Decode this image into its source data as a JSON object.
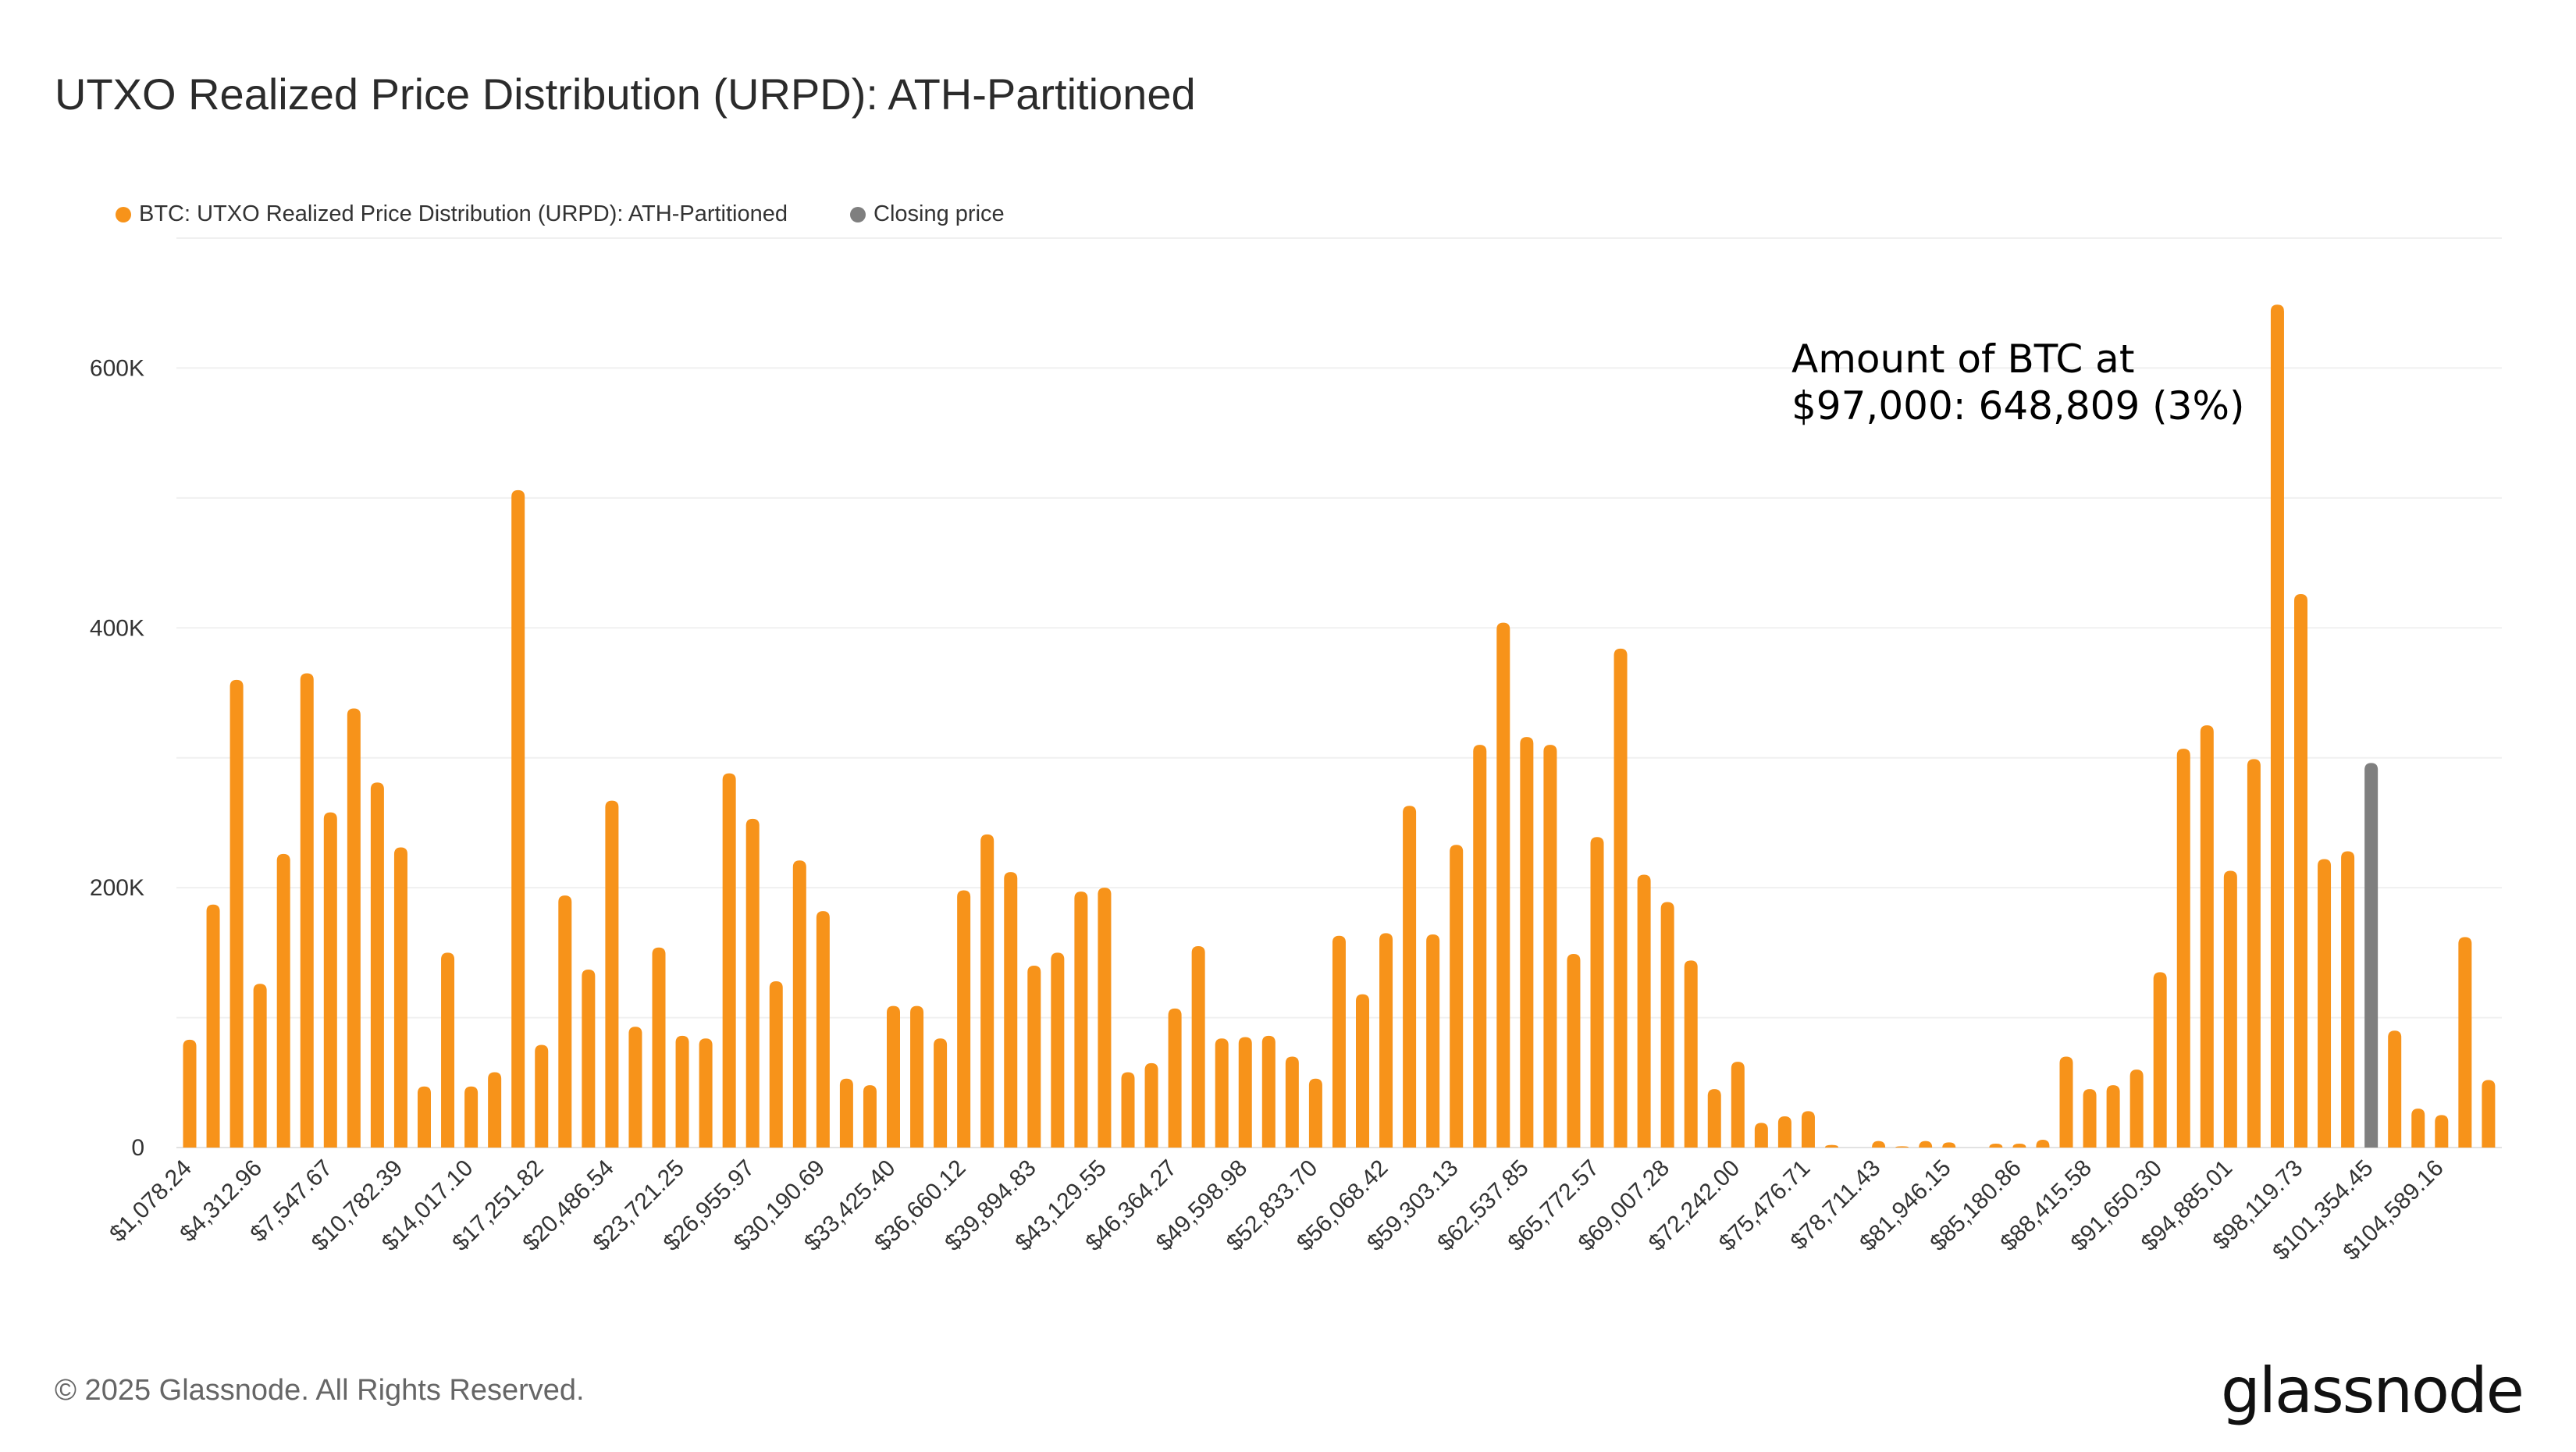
{
  "chart_data": {
    "type": "bar",
    "title": "UTXO Realized Price Distribution (URPD): ATH-Partitioned",
    "legend": [
      {
        "name": "BTC: UTXO Realized Price Distribution (URPD): ATH-Partitioned",
        "color": "#f7931a"
      },
      {
        "name": "Closing price",
        "color": "#7f7f7f"
      }
    ],
    "legend_placement": "top-left",
    "grid": true,
    "ylim": [
      0,
      700000
    ],
    "yticks": [
      0,
      200000,
      400000,
      600000
    ],
    "ytick_labels": [
      "0",
      "200K",
      "400K",
      "600K"
    ],
    "tick_labels": [
      "$1,078.24",
      "$4,312.96",
      "$7,547.67",
      "$10,782.39",
      "$14,017.10",
      "$17,251.82",
      "$20,486.54",
      "$23,721.25",
      "$26,955.97",
      "$30,190.69",
      "$33,425.40",
      "$36,660.12",
      "$39,894.83",
      "$43,129.55",
      "$46,364.27",
      "$49,598.98",
      "$52,833.70",
      "$56,068.42",
      "$59,303.13",
      "$62,537.85",
      "$65,772.57",
      "$69,007.28",
      "$72,242.00",
      "$75,476.71",
      "$78,711.43",
      "$81,946.15",
      "$85,180.86",
      "$88,415.58",
      "$91,650.30",
      "$94,885.01",
      "$98,119.73",
      "$101,354.45",
      "$104,589.16"
    ],
    "values": [
      83000,
      187000,
      360000,
      126000,
      226000,
      365000,
      258000,
      338000,
      281000,
      231000,
      47000,
      150000,
      47000,
      58000,
      506000,
      79000,
      194000,
      137000,
      267000,
      93000,
      154000,
      86000,
      84000,
      288000,
      253000,
      128000,
      221000,
      182000,
      53000,
      48000,
      109000,
      109000,
      84000,
      198000,
      241000,
      212000,
      140000,
      150000,
      197000,
      200000,
      58000,
      65000,
      107000,
      155000,
      84000,
      85000,
      86000,
      70000,
      53000,
      163000,
      118000,
      165000,
      263000,
      164000,
      233000,
      310000,
      404000,
      316000,
      310000,
      149000,
      239000,
      384000,
      210000,
      189000,
      144000,
      45000,
      66000,
      19000,
      24000,
      28000,
      2000,
      0,
      5000,
      1000,
      5000,
      4000,
      0,
      3000,
      3000,
      6000,
      70000,
      45000,
      48000,
      60000,
      135000,
      307000,
      325000,
      213000,
      299000,
      648809,
      426000,
      222000,
      228000,
      null,
      90000,
      30000,
      25000,
      162000,
      52000
    ],
    "closing_price": {
      "x": "$101,354.45",
      "value": 296000
    },
    "annotation": {
      "line1": "Amount of BTC at",
      "line2": "$97,000: 648,809 (3%)"
    }
  },
  "footer": "© 2025 Glassnode. All Rights Reserved.",
  "logo": "glassnode"
}
